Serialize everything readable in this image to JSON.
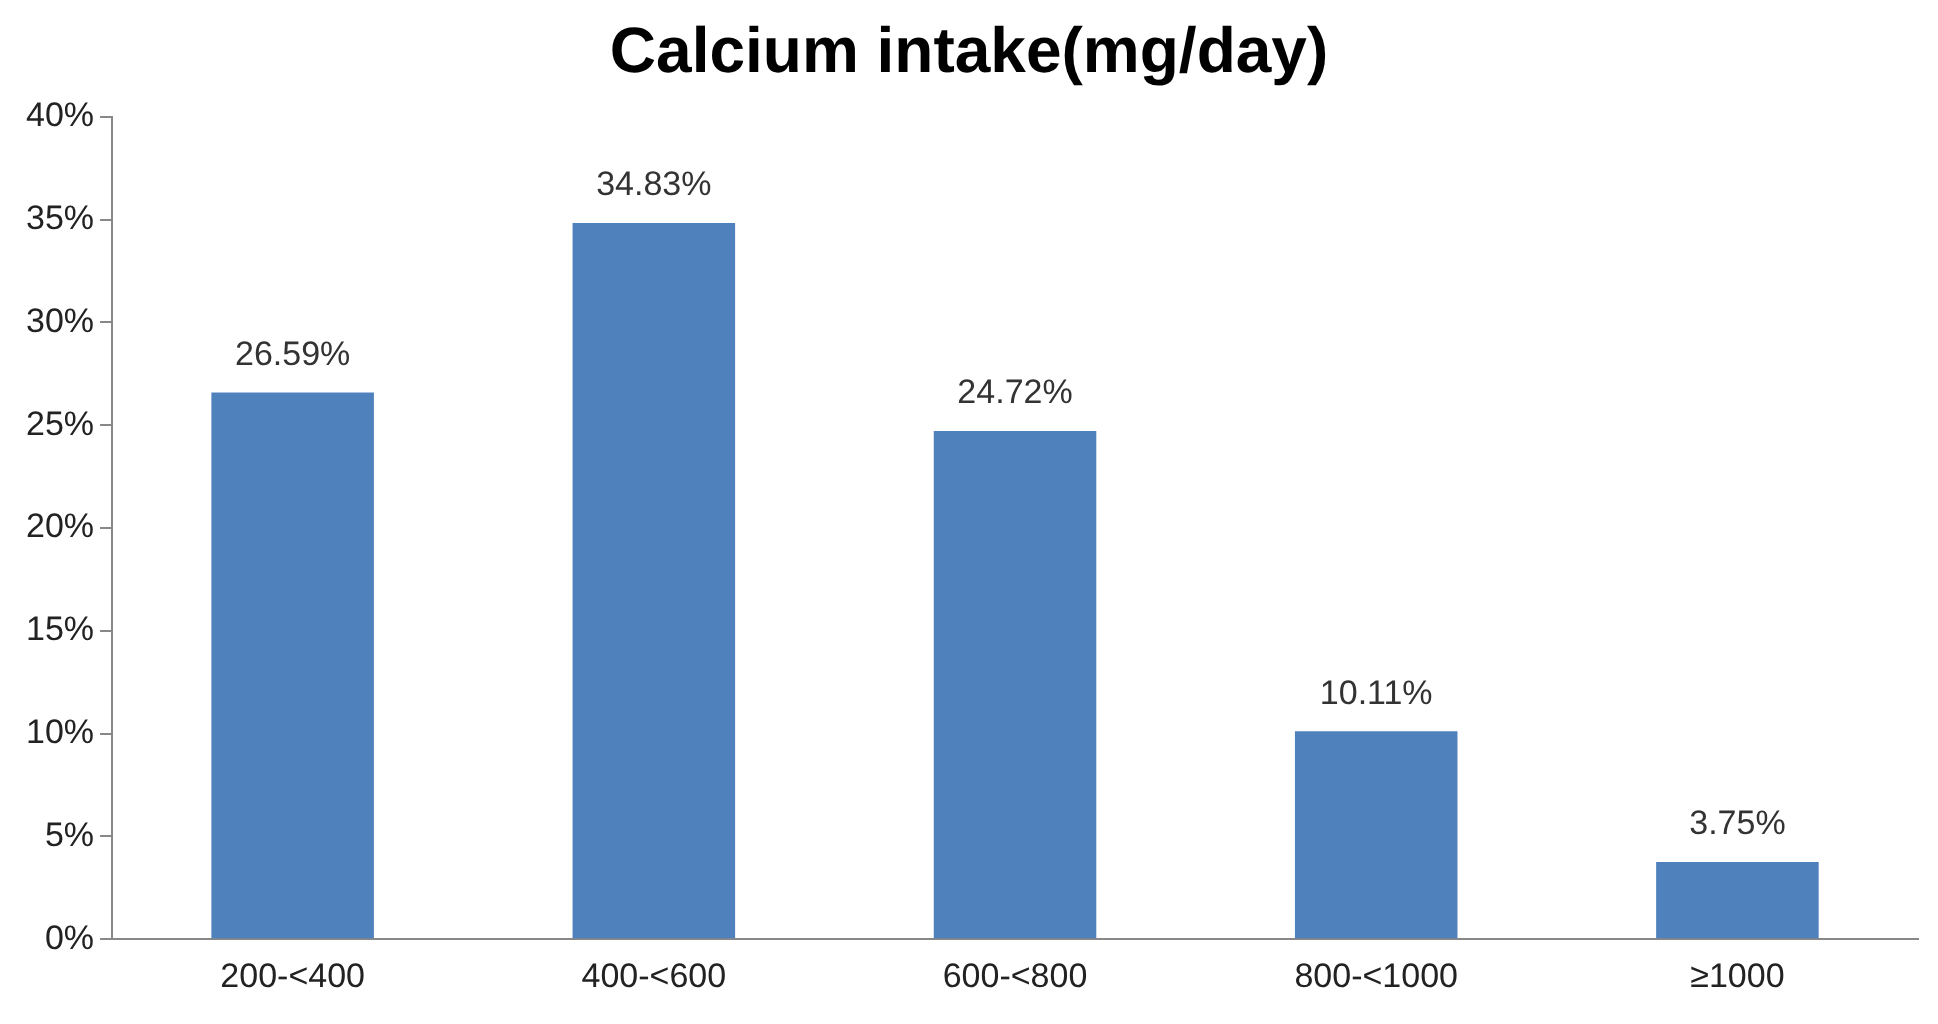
{
  "chart_data": {
    "type": "bar",
    "title": "Calcium intake(mg/day)",
    "categories": [
      "200-<400",
      "400-<600",
      "600-<800",
      "800-<1000",
      "≥1000"
    ],
    "values": [
      26.59,
      34.83,
      24.72,
      10.11,
      3.75
    ],
    "value_labels": [
      "26.59%",
      "34.83%",
      "24.72%",
      "10.11%",
      "3.75%"
    ],
    "color": "#4f81bd",
    "ylim": [
      0,
      40
    ],
    "yticks": [
      {
        "value": 0,
        "label": "0%"
      },
      {
        "value": 5,
        "label": "5%"
      },
      {
        "value": 10,
        "label": "10%"
      },
      {
        "value": 15,
        "label": "15%"
      },
      {
        "value": 20,
        "label": "20%"
      },
      {
        "value": 25,
        "label": "25%"
      },
      {
        "value": 30,
        "label": "30%"
      },
      {
        "value": 35,
        "label": "35%"
      },
      {
        "value": 40,
        "label": "40%"
      }
    ],
    "grid": false,
    "legend": false
  }
}
